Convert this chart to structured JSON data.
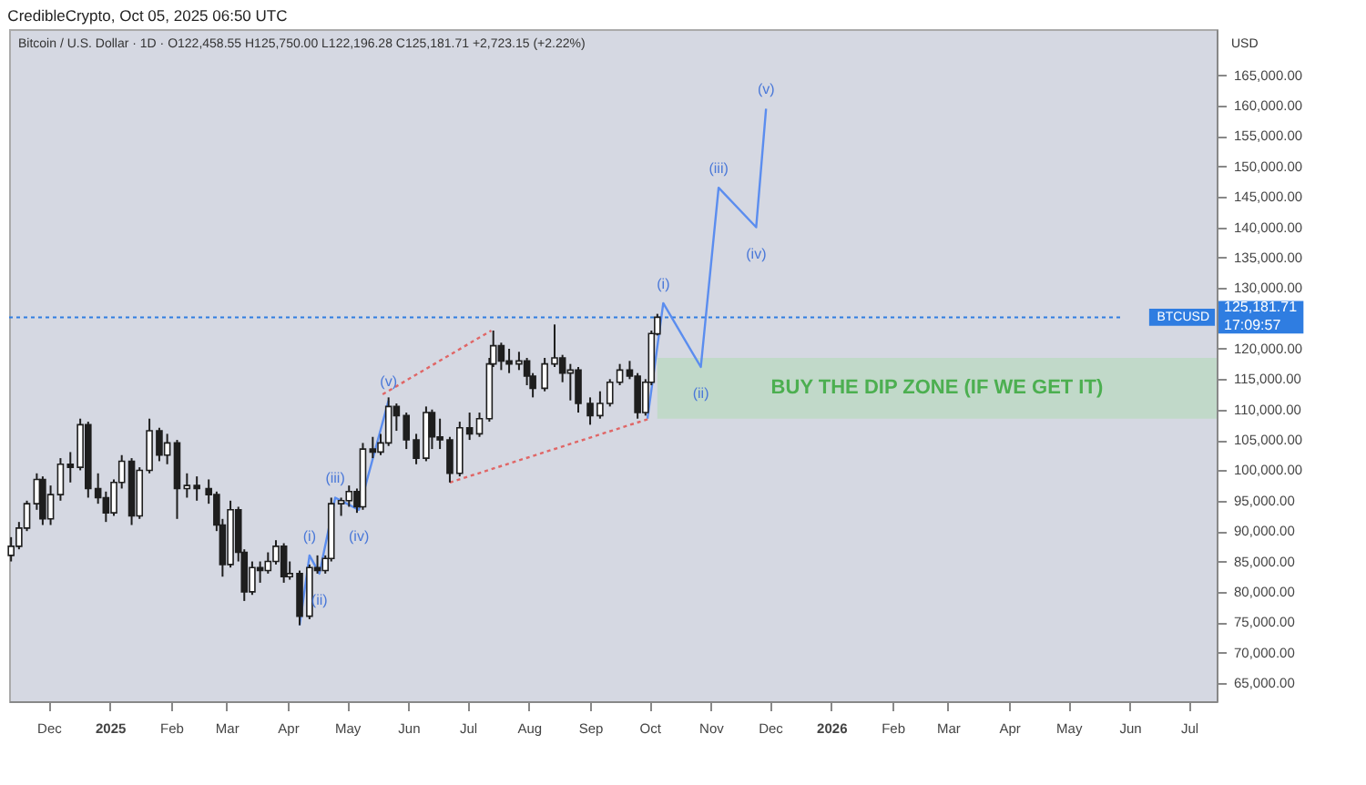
{
  "chart_data": {
    "type": "candlestick",
    "title": "CredibleCrypto, Oct 05, 2025 06:50 UTC",
    "subtitle": "Bitcoin / U.S. Dollar · 1D · O122,458.55 H125,750.00 L122,196.28 C125,181.71 +2,723.15 (+2.22%)",
    "ylabel": "USD",
    "xlim": [
      "2024-11-11",
      "2026-07-15"
    ],
    "ylim": [
      62000,
      172600
    ],
    "xticks": [
      {
        "value": "2024-12-01",
        "label": "Dec"
      },
      {
        "value": "2025-01-01",
        "label": "2025"
      },
      {
        "value": "2025-02-01",
        "label": "Feb"
      },
      {
        "value": "2025-03-01",
        "label": "Mar"
      },
      {
        "value": "2025-04-01",
        "label": "Apr"
      },
      {
        "value": "2025-05-01",
        "label": "May"
      },
      {
        "value": "2025-06-01",
        "label": "Jun"
      },
      {
        "value": "2025-07-01",
        "label": "Jul"
      },
      {
        "value": "2025-08-01",
        "label": "Aug"
      },
      {
        "value": "2025-09-01",
        "label": "Sep"
      },
      {
        "value": "2025-10-01",
        "label": "Oct"
      },
      {
        "value": "2025-11-01",
        "label": "Nov"
      },
      {
        "value": "2025-12-01",
        "label": "Dec"
      },
      {
        "value": "2026-01-01",
        "label": "2026"
      },
      {
        "value": "2026-02-01",
        "label": "Feb"
      },
      {
        "value": "2026-03-01",
        "label": "Mar"
      },
      {
        "value": "2026-04-01",
        "label": "Apr"
      },
      {
        "value": "2026-05-01",
        "label": "May"
      },
      {
        "value": "2026-06-01",
        "label": "Jun"
      },
      {
        "value": "2026-07-01",
        "label": "Jul"
      }
    ],
    "yticks": [
      {
        "value": 65000,
        "label": "65,000.00"
      },
      {
        "value": 70000,
        "label": "70,000.00"
      },
      {
        "value": 75000,
        "label": "75,000.00"
      },
      {
        "value": 80000,
        "label": "80,000.00"
      },
      {
        "value": 85000,
        "label": "85,000.00"
      },
      {
        "value": 90000,
        "label": "90,000.00"
      },
      {
        "value": 95000,
        "label": "95,000.00"
      },
      {
        "value": 100000,
        "label": "100,000.00"
      },
      {
        "value": 105000,
        "label": "105,000.00"
      },
      {
        "value": 110000,
        "label": "110,000.00"
      },
      {
        "value": 115000,
        "label": "115,000.00"
      },
      {
        "value": 120000,
        "label": "120,000.00"
      },
      {
        "value": 130000,
        "label": "130,000.00"
      },
      {
        "value": 135000,
        "label": "135,000.00"
      },
      {
        "value": 140000,
        "label": "140,000.00"
      },
      {
        "value": 145000,
        "label": "145,000.00"
      },
      {
        "value": 150000,
        "label": "150,000.00"
      },
      {
        "value": 155000,
        "label": "155,000.00"
      },
      {
        "value": 160000,
        "label": "160,000.00"
      },
      {
        "value": 165000,
        "label": "165,000.00"
      }
    ],
    "series": [
      {
        "color": "#1e1e1e",
        "x": [
          "2024-11-12",
          "2024-11-16",
          "2024-11-20",
          "2024-11-25",
          "2024-11-28",
          "2024-12-02",
          "2024-12-07",
          "2024-12-12",
          "2024-12-17",
          "2024-12-21",
          "2024-12-26",
          "2024-12-30",
          "2025-01-03",
          "2025-01-07",
          "2025-01-12",
          "2025-01-16",
          "2025-01-21",
          "2025-01-26",
          "2025-01-30",
          "2025-02-04",
          "2025-02-09",
          "2025-02-14",
          "2025-02-20",
          "2025-02-24",
          "2025-02-27",
          "2025-03-03",
          "2025-03-07",
          "2025-03-10",
          "2025-03-14",
          "2025-03-18",
          "2025-03-22",
          "2025-03-26",
          "2025-03-30",
          "2025-04-02",
          "2025-04-07",
          "2025-04-12",
          "2025-04-16",
          "2025-04-20",
          "2025-04-23",
          "2025-04-28",
          "2025-05-02",
          "2025-05-06",
          "2025-05-09",
          "2025-05-14",
          "2025-05-18",
          "2025-05-22",
          "2025-05-26",
          "2025-05-31",
          "2025-06-05",
          "2025-06-10",
          "2025-06-13",
          "2025-06-17",
          "2025-06-22",
          "2025-06-27",
          "2025-07-02",
          "2025-07-07",
          "2025-07-12",
          "2025-07-14",
          "2025-07-18",
          "2025-07-22",
          "2025-07-27",
          "2025-07-31",
          "2025-08-03",
          "2025-08-09",
          "2025-08-14",
          "2025-08-18",
          "2025-08-22",
          "2025-08-26",
          "2025-09-01",
          "2025-09-06",
          "2025-09-11",
          "2025-09-16",
          "2025-09-21",
          "2025-09-25",
          "2025-09-29",
          "2025-10-02",
          "2025-10-05"
        ],
        "ohlc": [
          [
            86000,
            89000,
            85000,
            87500
          ],
          [
            87500,
            91500,
            87000,
            90500
          ],
          [
            90500,
            95000,
            90000,
            94500
          ],
          [
            94500,
            99500,
            93500,
            98500
          ],
          [
            98500,
            99000,
            91000,
            92000
          ],
          [
            92000,
            97500,
            91000,
            96000
          ],
          [
            96000,
            102000,
            95000,
            101000
          ],
          [
            101000,
            103000,
            98000,
            100500
          ],
          [
            100500,
            108500,
            100000,
            107500
          ],
          [
            107500,
            108000,
            95500,
            97000
          ],
          [
            97000,
            99500,
            94500,
            95500
          ],
          [
            95500,
            96500,
            91500,
            93000
          ],
          [
            93000,
            98500,
            92500,
            98000
          ],
          [
            98000,
            102500,
            97000,
            101500
          ],
          [
            101500,
            102000,
            91000,
            92500
          ],
          [
            92500,
            100500,
            92000,
            100000
          ],
          [
            100000,
            108500,
            99500,
            106500
          ],
          [
            106500,
            107000,
            101500,
            102500
          ],
          [
            102500,
            106000,
            101000,
            104500
          ],
          [
            104500,
            105000,
            92000,
            97000
          ],
          [
            97000,
            99500,
            95500,
            97500
          ],
          [
            97500,
            99000,
            95000,
            97000
          ],
          [
            97000,
            98500,
            94500,
            96000
          ],
          [
            96000,
            96500,
            90000,
            91000
          ],
          [
            91000,
            92000,
            82500,
            84500
          ],
          [
            84500,
            95000,
            84000,
            93500
          ],
          [
            93500,
            94000,
            85000,
            86500
          ],
          [
            86500,
            87000,
            78500,
            80000
          ],
          [
            80000,
            85000,
            79500,
            84000
          ],
          [
            84000,
            85000,
            81500,
            83500
          ],
          [
            83500,
            86500,
            83000,
            85000
          ],
          [
            85000,
            88500,
            84500,
            87500
          ],
          [
            87500,
            88000,
            81500,
            82500
          ],
          [
            82500,
            85000,
            82000,
            83000
          ],
          [
            83000,
            83500,
            74500,
            76000
          ],
          [
            76000,
            84500,
            75500,
            84000
          ],
          [
            84000,
            86000,
            83000,
            83500
          ],
          [
            83500,
            86000,
            83000,
            85500
          ],
          [
            85500,
            95500,
            85000,
            94500
          ],
          [
            94500,
            95500,
            92500,
            95000
          ],
          [
            95000,
            97500,
            94000,
            96500
          ],
          [
            96500,
            97000,
            93000,
            94000
          ],
          [
            94000,
            104500,
            93500,
            103500
          ],
          [
            103500,
            105500,
            102000,
            103000
          ],
          [
            103000,
            106000,
            102500,
            104500
          ],
          [
            104500,
            112000,
            104000,
            110500
          ],
          [
            110500,
            111000,
            106500,
            109000
          ],
          [
            109000,
            109500,
            103500,
            105000
          ],
          [
            105000,
            106000,
            101000,
            102000
          ],
          [
            102000,
            110500,
            101500,
            109500
          ],
          [
            109500,
            110000,
            103500,
            105500
          ],
          [
            105500,
            108500,
            103500,
            105000
          ],
          [
            105000,
            105500,
            98000,
            99500
          ],
          [
            99500,
            108000,
            99000,
            107000
          ],
          [
            107000,
            109500,
            105000,
            106000
          ],
          [
            106000,
            109500,
            105500,
            108500
          ],
          [
            108500,
            118500,
            108000,
            117500
          ],
          [
            117500,
            123000,
            117000,
            120500
          ],
          [
            120500,
            121000,
            116500,
            118000
          ],
          [
            118000,
            120000,
            116000,
            117500
          ],
          [
            117500,
            119500,
            116500,
            118000
          ],
          [
            118000,
            118500,
            114000,
            115500
          ],
          [
            115500,
            116000,
            112000,
            113500
          ],
          [
            113500,
            118500,
            113000,
            117500
          ],
          [
            117500,
            124000,
            117000,
            118500
          ],
          [
            118500,
            119000,
            114500,
            116000
          ],
          [
            116000,
            117500,
            111500,
            116500
          ],
          [
            116500,
            117000,
            109500,
            111000
          ],
          [
            111000,
            112000,
            107500,
            109000
          ],
          [
            109000,
            113000,
            108500,
            111000
          ],
          [
            111000,
            115000,
            110500,
            114500
          ],
          [
            114500,
            117500,
            114000,
            116500
          ],
          [
            116500,
            118000,
            115000,
            115500
          ],
          [
            115500,
            116000,
            108500,
            109500
          ],
          [
            109500,
            115000,
            109000,
            114500
          ],
          [
            114500,
            123000,
            114000,
            122500
          ],
          [
            122458.55,
            125750,
            122196.28,
            125181.71
          ]
        ]
      },
      {
        "type": "line",
        "color": "#5b8def",
        "x": [
          "2025-04-07",
          "2025-04-12",
          "2025-04-17",
          "2025-04-25",
          "2025-05-07",
          "2025-05-22"
        ],
        "values": [
          74500,
          86000,
          83000,
          95500,
          93500,
          111500
        ]
      },
      {
        "type": "line",
        "color": "#5b8def",
        "x": [
          "2025-09-30",
          "2025-10-08",
          "2025-10-27",
          "2025-11-05",
          "2025-11-24",
          "2025-11-29"
        ],
        "values": [
          108500,
          127500,
          117000,
          146500,
          140000,
          159500
        ]
      },
      {
        "type": "line",
        "color": "#e06666",
        "line_style": "dotted",
        "x": [
          "2025-05-19",
          "2025-07-13"
        ],
        "values": [
          112500,
          123000
        ]
      },
      {
        "type": "line",
        "color": "#e06666",
        "line_style": "dotted",
        "x": [
          "2025-06-22",
          "2025-10-01"
        ],
        "values": [
          98000,
          108500
        ]
      }
    ],
    "bands": [
      {
        "axis": "y",
        "from": 108500,
        "to": 118500,
        "label": "BUY THE DIP ZONE (IF WE GET IT)",
        "color": "#b9d9c0"
      }
    ],
    "ref_lines": [
      {
        "axis": "y",
        "value": 125181.71,
        "label": "BTCUSD",
        "color": "#2f7de1",
        "line_style": "dotted"
      }
    ],
    "annotations": [
      "125,181.71",
      "17:09:57",
      {
        "text": "(i)",
        "x": "2025-04-12",
        "y": 86000
      },
      {
        "text": "(ii)",
        "x": "2025-04-17",
        "y": 83000
      },
      {
        "text": "(iii)",
        "x": "2025-04-25",
        "y": 95500
      },
      {
        "text": "(iv)",
        "x": "2025-05-07",
        "y": 93500
      },
      {
        "text": "(v)",
        "x": "2025-05-22",
        "y": 111500
      },
      {
        "text": "(i)",
        "x": "2025-10-08",
        "y": 127500
      },
      {
        "text": "(ii)",
        "x": "2025-10-27",
        "y": 117000
      },
      {
        "text": "(iii)",
        "x": "2025-11-05",
        "y": 146500
      },
      {
        "text": "(iv)",
        "x": "2025-11-24",
        "y": 140000
      },
      {
        "text": "(v)",
        "x": "2025-11-29",
        "y": 159500
      }
    ]
  }
}
